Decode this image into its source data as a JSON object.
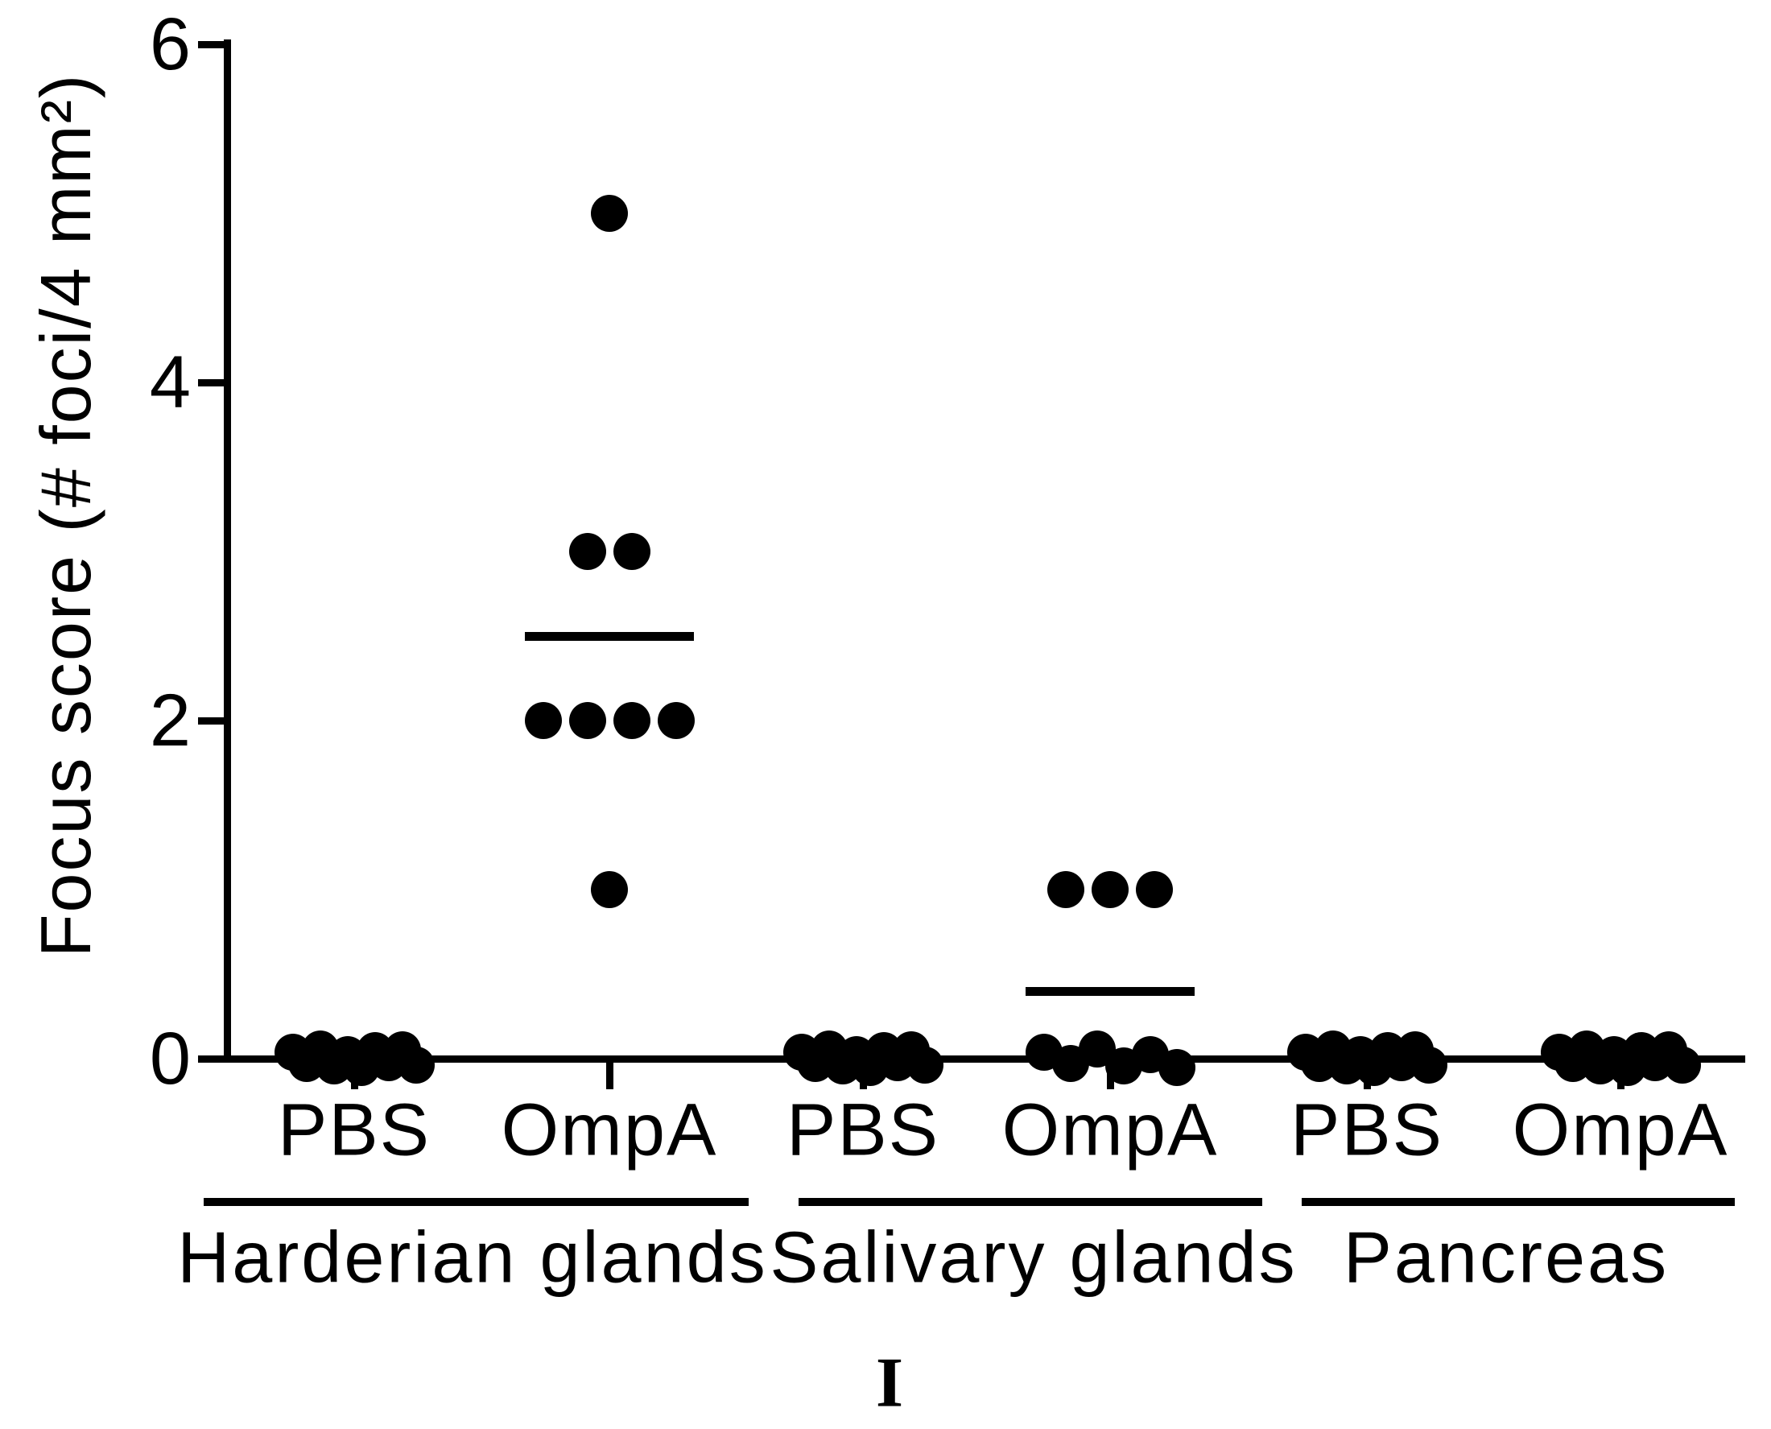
{
  "figure": {
    "background_color": "#ffffff",
    "ink_color": "#000000",
    "panel_label": "I"
  },
  "chart_data": {
    "type": "scatter",
    "subtype": "dot-plot-with-mean-lines",
    "title": "",
    "xlabel": "",
    "ylabel": "Focus score (# foci/4 mm²)",
    "ylim": [
      0,
      6
    ],
    "yticks": [
      0,
      2,
      4,
      6
    ],
    "grid": false,
    "legend": "none",
    "organs": [
      {
        "name": "Harderian glands"
      },
      {
        "name": "Salivary glands"
      },
      {
        "name": "Pancreas"
      }
    ],
    "groups": [
      {
        "organ": "Harderian glands",
        "treatment": "PBS",
        "values": [
          0,
          0,
          0,
          0,
          0,
          0,
          0,
          0,
          0,
          0
        ],
        "mean_line": null
      },
      {
        "organ": "Harderian glands",
        "treatment": "OmpA",
        "values": [
          5,
          3,
          3,
          2,
          2,
          2,
          2,
          1
        ],
        "mean_line": 2.5
      },
      {
        "organ": "Salivary glands",
        "treatment": "PBS",
        "values": [
          0,
          0,
          0,
          0,
          0,
          0,
          0,
          0,
          0,
          0
        ],
        "mean_line": null
      },
      {
        "organ": "Salivary glands",
        "treatment": "OmpA",
        "values": [
          1,
          1,
          1,
          0,
          0,
          0,
          0,
          0,
          0
        ],
        "mean_line": 0.4
      },
      {
        "organ": "Pancreas",
        "treatment": "PBS",
        "values": [
          0,
          0,
          0,
          0,
          0,
          0,
          0,
          0,
          0,
          0
        ],
        "mean_line": null
      },
      {
        "organ": "Pancreas",
        "treatment": "OmpA",
        "values": [
          0,
          0,
          0,
          0,
          0,
          0,
          0,
          0,
          0,
          0
        ],
        "mean_line": null
      }
    ]
  }
}
